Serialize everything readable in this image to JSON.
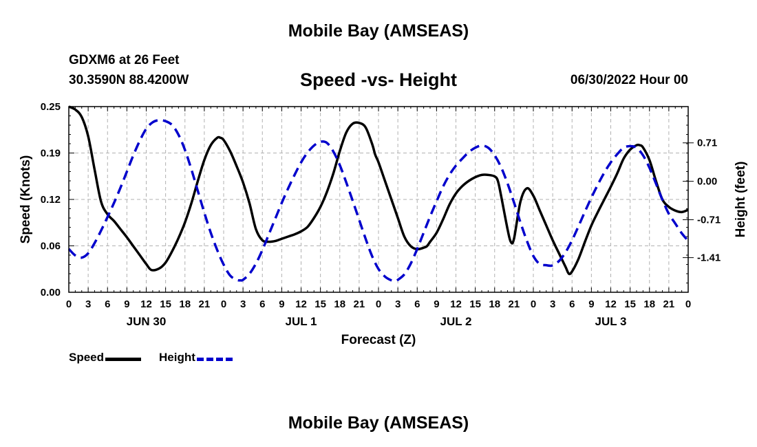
{
  "header": {
    "title": "Mobile Bay (AMSEAS)",
    "station": "GDXM6 at 26 Feet",
    "coords": "30.3590N  88.4200W",
    "subtitle": "Speed -vs- Height",
    "datetime": "06/30/2022 Hour 00"
  },
  "footer": {
    "title": "Mobile Bay (AMSEAS)"
  },
  "chart_data": {
    "type": "line",
    "xlabel": "Forecast (Z)",
    "ylabel_left": "Speed (Knots)",
    "ylabel_right": "Height (feet)",
    "x_range_hours": [
      0,
      96
    ],
    "x_tick_step_hours": 3,
    "x_tick_labels": [
      "0",
      "3",
      "6",
      "9",
      "12",
      "15",
      "18",
      "21",
      "0",
      "3",
      "6",
      "9",
      "12",
      "15",
      "18",
      "21",
      "0",
      "3",
      "6",
      "9",
      "12",
      "15",
      "18",
      "21",
      "0",
      "3",
      "6",
      "9",
      "12",
      "15",
      "18",
      "21",
      "0"
    ],
    "date_labels": [
      {
        "label": "JUN 30",
        "hour": 12
      },
      {
        "label": "JUL 1",
        "hour": 36
      },
      {
        "label": "JUL 2",
        "hour": 60
      },
      {
        "label": "JUL 3",
        "hour": 84
      }
    ],
    "y_left_range": [
      0,
      0.25
    ],
    "y_left_ticks": [
      "0.00",
      "0.06",
      "0.12",
      "0.19",
      "0.25"
    ],
    "y_left_tick_values": [
      0,
      0.0625,
      0.125,
      0.1875,
      0.25
    ],
    "y_right_range": [
      -2.05,
      1.38
    ],
    "y_right_ticks": [
      "-1.41",
      "-0.71",
      "0.00",
      "0.71"
    ],
    "y_right_tick_values": [
      -1.41,
      -0.71,
      0.0,
      0.71
    ],
    "grid": true,
    "series": [
      {
        "name": "Speed",
        "axis": "left",
        "color": "#000000",
        "dash": "solid",
        "x": [
          0,
          1,
          2,
          3,
          4,
          5,
          6,
          7,
          8,
          9,
          10,
          11,
          12,
          12.8,
          14,
          15,
          16,
          17,
          18,
          19,
          20,
          21,
          22,
          23,
          23.5,
          24,
          25,
          26,
          27,
          28,
          29,
          30,
          31,
          32,
          33,
          34,
          35,
          36,
          37,
          38,
          39,
          40,
          41,
          42,
          43,
          44,
          45,
          46,
          47,
          47.5,
          48,
          49,
          50,
          51,
          52,
          53,
          54,
          55,
          55.5,
          56,
          57,
          58,
          59,
          60,
          61,
          62,
          63,
          64,
          65,
          66,
          66.5,
          67,
          68,
          68.5,
          69,
          70,
          71,
          72,
          73,
          74,
          75,
          76,
          77,
          77.5,
          78,
          79,
          80,
          81,
          82,
          83,
          84,
          85,
          86,
          87,
          88,
          88.5,
          89,
          90,
          91,
          92,
          93,
          94,
          95,
          96
        ],
        "y": [
          0.25,
          0.246,
          0.236,
          0.21,
          0.165,
          0.122,
          0.105,
          0.096,
          0.085,
          0.074,
          0.062,
          0.05,
          0.038,
          0.03,
          0.032,
          0.04,
          0.055,
          0.073,
          0.094,
          0.12,
          0.15,
          0.178,
          0.198,
          0.208,
          0.208,
          0.205,
          0.19,
          0.17,
          0.148,
          0.12,
          0.085,
          0.07,
          0.068,
          0.069,
          0.072,
          0.075,
          0.078,
          0.082,
          0.088,
          0.1,
          0.115,
          0.135,
          0.16,
          0.19,
          0.215,
          0.227,
          0.228,
          0.222,
          0.2,
          0.185,
          0.175,
          0.15,
          0.125,
          0.1,
          0.075,
          0.062,
          0.058,
          0.06,
          0.062,
          0.068,
          0.08,
          0.098,
          0.118,
          0.133,
          0.143,
          0.15,
          0.155,
          0.158,
          0.158,
          0.156,
          0.15,
          0.13,
          0.085,
          0.068,
          0.072,
          0.122,
          0.14,
          0.13,
          0.11,
          0.09,
          0.07,
          0.052,
          0.034,
          0.025,
          0.028,
          0.045,
          0.068,
          0.09,
          0.108,
          0.125,
          0.142,
          0.16,
          0.18,
          0.192,
          0.198,
          0.198,
          0.195,
          0.178,
          0.15,
          0.125,
          0.115,
          0.11,
          0.108,
          0.111
        ]
      },
      {
        "name": "Height",
        "axis": "right",
        "color": "#0000cc",
        "dash": "dashed",
        "x": [
          0,
          1,
          2,
          3,
          4,
          5,
          6,
          7,
          8,
          9,
          10,
          11,
          12,
          13,
          14,
          15,
          16,
          17,
          18,
          19,
          20,
          21,
          22,
          23,
          24,
          25,
          26,
          26.6,
          27,
          28,
          29,
          30,
          31,
          32,
          33,
          34,
          35,
          36,
          37,
          38,
          39,
          40,
          41,
          42,
          43,
          44,
          45,
          46,
          47,
          48,
          49,
          50,
          50.6,
          51,
          52,
          53,
          54,
          55,
          56,
          57,
          58,
          59,
          60,
          61,
          62,
          63,
          64,
          65,
          66,
          67,
          68,
          69,
          70,
          71,
          72,
          73,
          74,
          74.6,
          75,
          76,
          77,
          78,
          79,
          80,
          81,
          82,
          83,
          84,
          85,
          86,
          87,
          88,
          89,
          90,
          91,
          92,
          93,
          94,
          95,
          96
        ],
        "y": [
          -1.25,
          -1.37,
          -1.41,
          -1.33,
          -1.14,
          -0.91,
          -0.66,
          -0.4,
          -0.12,
          0.18,
          0.48,
          0.75,
          0.97,
          1.09,
          1.13,
          1.11,
          1.04,
          0.86,
          0.58,
          0.22,
          -0.18,
          -0.58,
          -0.95,
          -1.27,
          -1.54,
          -1.74,
          -1.82,
          -1.83,
          -1.82,
          -1.71,
          -1.52,
          -1.27,
          -0.98,
          -0.69,
          -0.4,
          -0.13,
          0.12,
          0.35,
          0.53,
          0.66,
          0.73,
          0.71,
          0.55,
          0.3,
          -0.02,
          -0.36,
          -0.71,
          -1.06,
          -1.38,
          -1.62,
          -1.76,
          -1.83,
          -1.84,
          -1.82,
          -1.72,
          -1.52,
          -1.25,
          -0.95,
          -0.65,
          -0.37,
          -0.1,
          0.12,
          0.29,
          0.42,
          0.54,
          0.62,
          0.66,
          0.62,
          0.48,
          0.26,
          -0.04,
          -0.39,
          -0.76,
          -1.1,
          -1.38,
          -1.53,
          -1.55,
          -1.56,
          -1.55,
          -1.47,
          -1.31,
          -1.09,
          -0.83,
          -0.56,
          -0.3,
          -0.06,
          0.16,
          0.35,
          0.5,
          0.62,
          0.65,
          0.62,
          0.48,
          0.25,
          -0.04,
          -0.34,
          -0.6,
          -0.78,
          -0.96,
          -1.1
        ]
      }
    ]
  },
  "legend": {
    "speed_label": "Speed",
    "height_label": "Height"
  },
  "colors": {
    "speed": "#000000",
    "height": "#0000cc",
    "grid": "#b0b0b0"
  }
}
